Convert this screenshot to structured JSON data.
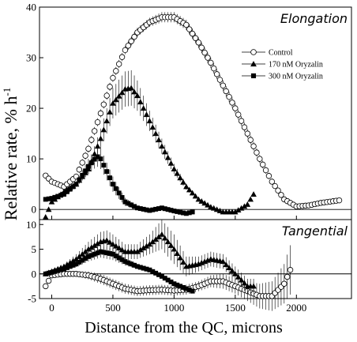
{
  "chart_data": {
    "type": "scatter",
    "xlabel": "Distance from the QC, microns",
    "ylabel": "Relative rate,  % h",
    "ylabel_sup": "-1",
    "xlim": [
      -100,
      2450
    ],
    "x_ticks": [
      0,
      500,
      1000,
      1500,
      2000
    ],
    "legend_placement": "upper-right of top panel",
    "panels": [
      {
        "title": "Elongation",
        "ylim": [
          -2,
          40
        ],
        "y_ticks": [
          0,
          10,
          20,
          30,
          40
        ],
        "series": [
          {
            "name": "Control",
            "marker": "circle-open",
            "x": [
              -50,
              0,
              100,
              200,
              300,
              400,
              500,
              600,
              700,
              800,
              900,
              1000,
              1100,
              1200,
              1300,
              1400,
              1500,
              1600,
              1700,
              1800,
              1900,
              2000,
              2100,
              2200,
              2350
            ],
            "y": [
              6.7,
              5.5,
              4.5,
              6.5,
              12,
              19,
              26,
              31.5,
              35,
              37,
              38,
              38,
              36.5,
              33,
              29,
              24.5,
              20,
              15,
              10,
              5.5,
              2,
              0.6,
              0.8,
              1.3,
              1.8
            ],
            "err": [
              0,
              0,
              0,
              0.6,
              0.8,
              0.8,
              0.8,
              0.8,
              0.9,
              0.9,
              1.0,
              1.0,
              1.0,
              1.0,
              1.0,
              1.0,
              1.0,
              0.9,
              0.8,
              0.6,
              0.3,
              0,
              0,
              0,
              0
            ]
          },
          {
            "name": "170 nM Oryzalin",
            "marker": "triangle-filled",
            "x": [
              -50,
              0,
              100,
              200,
              300,
              400,
              500,
              600,
              650,
              700,
              800,
              900,
              1000,
              1100,
              1200,
              1300,
              1400,
              1500,
              1600,
              1650
            ],
            "y": [
              -1.5,
              1.5,
              3.5,
              5,
              8,
              14,
              21,
              23.8,
              24,
              22.5,
              17.5,
              12.5,
              8,
              4.5,
              2,
              0.5,
              -0.5,
              -0.5,
              1,
              3
            ],
            "err": [
              0,
              0,
              0,
              0.5,
              1,
              2,
              3,
              3.5,
              3.5,
              3,
              2,
              1.5,
              1,
              0.6,
              0.4,
              0,
              0,
              0,
              0,
              0
            ]
          },
          {
            "name": "300 nM Oryzalin",
            "marker": "square-filled",
            "x": [
              -50,
              0,
              100,
              200,
              300,
              370,
              400,
              500,
              600,
              700,
              800,
              900,
              1000,
              1100,
              1150
            ],
            "y": [
              2,
              2.2,
              3,
              5,
              8.5,
              10.5,
              10,
              5,
              1.5,
              0.3,
              -0.2,
              0.3,
              -0.3,
              -0.8,
              -0.5
            ],
            "err": [
              0,
              0,
              0,
              0.5,
              1.5,
              2,
              2,
              1.5,
              0.8,
              0.3,
              0,
              0,
              0,
              0,
              0
            ]
          }
        ]
      },
      {
        "title": "Tangential",
        "ylim": [
          -5,
          11
        ],
        "y_ticks": [
          -5,
          0,
          5,
          10
        ],
        "series": [
          {
            "name": "Control",
            "marker": "circle-open",
            "x": [
              -50,
              0,
              100,
              200,
              300,
              400,
              500,
              600,
              700,
              800,
              900,
              1000,
              1100,
              1200,
              1300,
              1400,
              1500,
              1600,
              1700,
              1800,
              1900,
              1950
            ],
            "y": [
              -2.5,
              -0.3,
              0,
              0,
              -0.3,
              -1,
              -2,
              -3,
              -3.5,
              -3.3,
              -3.2,
              -3.4,
              -3.2,
              -2.5,
              -1.5,
              -1.5,
              -2.5,
              -3.5,
              -4.5,
              -4.5,
              -2,
              0.8
            ],
            "err": [
              0,
              0,
              0,
              0.5,
              0.8,
              1,
              1,
              1,
              1,
              1,
              1,
              1,
              1,
              1,
              1.2,
              1.5,
              1.5,
              2,
              2.5,
              3,
              4,
              5
            ]
          },
          {
            "name": "170 nM Oryzalin",
            "marker": "triangle-filled",
            "x": [
              -50,
              0,
              100,
              200,
              300,
              400,
              450,
              500,
              600,
              700,
              800,
              900,
              1000,
              1100,
              1200,
              1300,
              1400,
              1500,
              1600,
              1650
            ],
            "y": [
              0,
              0.5,
              1.5,
              3,
              5,
              6.5,
              6.8,
              6,
              4.5,
              4.5,
              6,
              8,
              5,
              1.5,
              2,
              3,
              2.5,
              0,
              -2.5,
              -2.5
            ],
            "err": [
              0,
              0.3,
              0.5,
              1,
              1.5,
              2,
              2,
              2,
              1.5,
              1.5,
              2,
              3,
              3,
              2,
              1.5,
              1.5,
              1.5,
              1.5,
              1.5,
              1.5
            ]
          },
          {
            "name": "300 nM Oryzalin",
            "marker": "square-filled",
            "x": [
              -50,
              0,
              100,
              200,
              300,
              400,
              500,
              600,
              700,
              800,
              900,
              1000,
              1100,
              1150
            ],
            "y": [
              0,
              0.3,
              1,
              2,
              3.5,
              4.5,
              4,
              2.5,
              1.5,
              0.8,
              -0.5,
              -2,
              -3,
              -3.5
            ],
            "err": [
              0,
              0,
              0.3,
              0.6,
              1,
              1.2,
              1.2,
              0.8,
              0.5,
              0.3,
              0.3,
              0.3,
              0.3,
              0
            ]
          }
        ]
      }
    ]
  }
}
